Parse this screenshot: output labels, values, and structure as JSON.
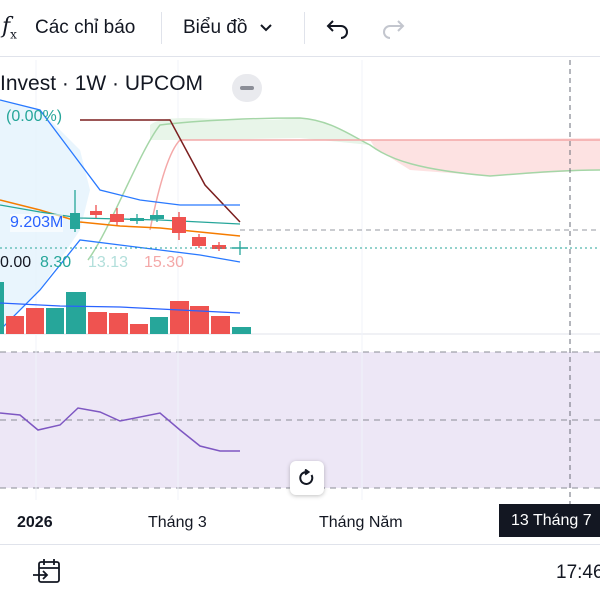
{
  "toolbar": {
    "indicators_label": "Các chỉ báo",
    "chart_type_label": "Biểu đồ"
  },
  "legend": {
    "title": "Invest · 1W · UPCOM",
    "change": "(0.00%)",
    "volume": "9.203M",
    "ind_val_1": "0.00",
    "ind_val_2": "8.30",
    "ind_val_3": "13.13",
    "ind_val_4": "15.30"
  },
  "xaxis": {
    "label_2026": "2026",
    "label_march": "Tháng 3",
    "label_may": "Tháng Năm",
    "crosshair_date": "13 Tháng 7"
  },
  "status": {
    "time": "17:46"
  },
  "colors": {
    "up": "#26a69a",
    "down": "#ef5350",
    "cloud_green": "#a5d6a7",
    "cloud_red": "#f8c8c8",
    "rsi_bg": "#ede7f6",
    "rsi_line": "#7e57c2",
    "bb_line": "#2962ff",
    "ma_line": "#f57c00",
    "chikou": "#7b1f1f"
  }
}
